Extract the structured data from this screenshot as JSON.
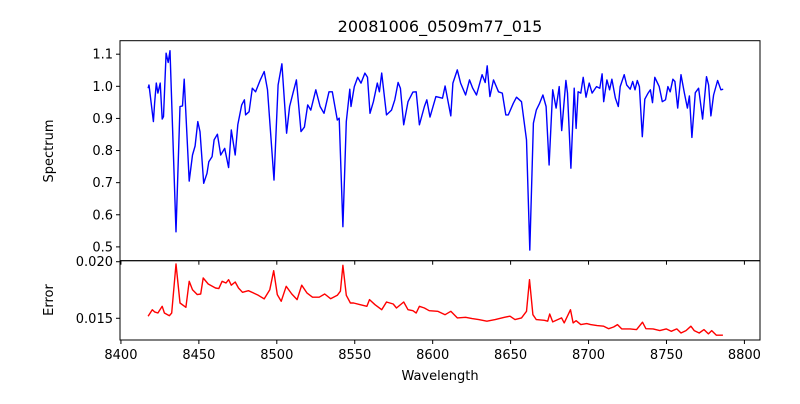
{
  "chart_data": [
    {
      "type": "line",
      "title": "20081006_0509m77_015",
      "xlabel": "",
      "ylabel": "Spectrum",
      "xlim": [
        8399.4,
        8810
      ],
      "ylim": [
        0.457,
        1.142
      ],
      "xticks": [
        8400,
        8450,
        8500,
        8550,
        8600,
        8650,
        8700,
        8750,
        8800
      ],
      "yticks": [
        0.5,
        0.6,
        0.7,
        0.8,
        0.9,
        1.0,
        1.1
      ],
      "ytick_labels": [
        "0.5",
        "0.6",
        "0.7",
        "0.8",
        "0.9",
        "1.0",
        "1.1"
      ],
      "grid": false,
      "series": [
        {
          "name": "Spectrum",
          "color": "#0000ff",
          "x": [
            8417.4,
            8418.0,
            8420.8,
            8421.6,
            8422.7,
            8423.7,
            8425.2,
            8426.5,
            8427.3,
            8429.0,
            8430.3,
            8431.5,
            8435.3,
            8437.9,
            8439.5,
            8440.6,
            8443.8,
            8445.9,
            8447.6,
            8449.3,
            8450.7,
            8453.1,
            8455.2,
            8456.4,
            8458.5,
            8459.8,
            8461.9,
            8464.0,
            8466.6,
            8469.1,
            8470.8,
            8473.3,
            8475.0,
            8477.5,
            8479.2,
            8480.0,
            8482.2,
            8484.3,
            8486.4,
            8489.4,
            8491.9,
            8494.0,
            8498.2,
            8500.8,
            8503.3,
            8506.3,
            8508.2,
            8510.4,
            8512.6,
            8515.5,
            8517.7,
            8519.8,
            8521.8,
            8525.0,
            8527.8,
            8530.3,
            8533.5,
            8535.6,
            8538.8,
            8540.0,
            8542.4,
            8544.6,
            8546.8,
            8547.6,
            8549.7,
            8551.9,
            8554.0,
            8556.5,
            8558.2,
            8559.8,
            8562.0,
            8564.5,
            8565.8,
            8567.3,
            8570.4,
            8573.6,
            8575.7,
            8577.8,
            8579.3,
            8581.4,
            8584.2,
            8587.3,
            8589.4,
            8591.5,
            8594.7,
            8596.2,
            8598.3,
            8602.1,
            8606.3,
            8608.0,
            8611.6,
            8613.0,
            8615.8,
            8617.9,
            8621.1,
            8623.6,
            8625.7,
            8628.1,
            8631.7,
            8633.7,
            8635.0,
            8636.7,
            8639.0,
            8642.2,
            8644.7,
            8646.9,
            8648.5,
            8651.7,
            8653.8,
            8657.0,
            8660.2,
            8662.3,
            8664.6,
            8666.5,
            8668.6,
            8670.7,
            8672.8,
            8674.7,
            8677.0,
            8679.2,
            8681.2,
            8682.8,
            8685.5,
            8686.5,
            8688.7,
            8690.8,
            8692.0,
            8693.3,
            8695.0,
            8696.6,
            8698.4,
            8700.4,
            8702.3,
            8705.1,
            8707.2,
            8708.7,
            8709.7,
            8711.8,
            8713.5,
            8715.0,
            8717.2,
            8719.1,
            8720.3,
            8722.9,
            8724.5,
            8726.7,
            8728.3,
            8729.8,
            8731.3,
            8732.6,
            8734.5,
            8736.1,
            8738.2,
            8739.7,
            8741.0,
            8742.5,
            8745.3,
            8747.3,
            8749.4,
            8750.9,
            8752.4,
            8754.1,
            8755.4,
            8757.2,
            8759.3,
            8761.5,
            8763.4,
            8764.7,
            8766.3,
            8768.5,
            8770.6,
            8773.2,
            8775.7,
            8777.0,
            8778.5,
            8780.2,
            8782.8,
            8784.9,
            8786.4
          ],
          "y": [
            0.994,
            1.004,
            0.89,
            0.947,
            1.01,
            0.979,
            1.01,
            0.898,
            0.906,
            1.103,
            1.074,
            1.111,
            0.547,
            0.937,
            0.939,
            1.022,
            0.705,
            0.786,
            0.814,
            0.89,
            0.859,
            0.698,
            0.729,
            0.765,
            0.781,
            0.833,
            0.851,
            0.786,
            0.807,
            0.747,
            0.864,
            0.786,
            0.88,
            0.942,
            0.958,
            0.911,
            0.921,
            0.994,
            0.983,
            1.02,
            1.046,
            0.989,
            0.708,
            1.004,
            1.07,
            0.854,
            0.937,
            0.979,
            1.02,
            0.859,
            0.873,
            0.942,
            0.926,
            0.989,
            0.937,
            0.916,
            0.983,
            0.983,
            0.895,
            0.901,
            0.563,
            0.89,
            0.991,
            0.937,
            0.999,
            1.028,
            1.01,
            1.041,
            1.028,
            0.916,
            0.952,
            1.01,
            0.983,
            1.041,
            0.911,
            0.926,
            0.958,
            1.012,
            0.994,
            0.88,
            0.952,
            0.982,
            0.983,
            0.88,
            0.937,
            0.958,
            0.904,
            0.968,
            0.963,
            1.001,
            0.908,
            1.01,
            1.051,
            1.01,
            0.973,
            1.02,
            0.994,
            0.973,
            1.036,
            1.012,
            1.064,
            0.968,
            1.02,
            0.983,
            0.979,
            0.911,
            0.911,
            0.947,
            0.966,
            0.952,
            0.833,
            0.49,
            0.885,
            0.926,
            0.947,
            0.973,
            0.937,
            0.755,
            0.989,
            0.932,
            0.999,
            0.862,
            1.018,
            0.979,
            0.745,
            0.994,
            0.869,
            0.983,
            0.979,
            1.028,
            0.966,
            1.01,
            0.979,
            0.999,
            0.994,
            1.039,
            0.952,
            1.02,
            0.989,
            1.022,
            0.963,
            0.937,
            0.999,
            1.036,
            1.004,
            0.991,
            1.015,
            0.989,
            1.018,
            0.999,
            0.843,
            0.96,
            0.979,
            0.989,
            0.949,
            1.028,
            0.999,
            0.952,
            0.958,
            0.999,
            0.983,
            1.022,
            1.015,
            0.932,
            1.036,
            0.979,
            0.932,
            0.97,
            0.841,
            0.98,
            0.994,
            0.898,
            1.03,
            1.004,
            0.908,
            0.973,
            1.018,
            0.989,
            0.991
          ]
        }
      ]
    },
    {
      "type": "line",
      "title": "",
      "xlabel": "Wavelength",
      "ylabel": "Error",
      "xlim": [
        8399.4,
        8810
      ],
      "ylim": [
        0.01308,
        0.02009
      ],
      "xticks": [
        8400,
        8450,
        8500,
        8550,
        8600,
        8650,
        8700,
        8750,
        8800
      ],
      "xtick_labels": [
        "8400",
        "8450",
        "8500",
        "8550",
        "8600",
        "8650",
        "8700",
        "8750",
        "8800"
      ],
      "yticks": [
        0.015,
        0.02
      ],
      "ytick_labels": [
        "0.015",
        "0.020"
      ],
      "grid": false,
      "series": [
        {
          "name": "Error",
          "color": "#ff0000",
          "x": [
            8417.4,
            8420.1,
            8421.6,
            8423.7,
            8426.5,
            8427.9,
            8431.1,
            8432.6,
            8435.3,
            8437.9,
            8441.7,
            8443.8,
            8445.9,
            8449.0,
            8451.2,
            8452.8,
            8456.0,
            8460.7,
            8462.8,
            8464.9,
            8467.4,
            8469.1,
            8470.8,
            8473.3,
            8475.4,
            8478.0,
            8481.8,
            8484.9,
            8488.1,
            8491.9,
            8495.5,
            8498.0,
            8500.3,
            8502.8,
            8506.0,
            8509.6,
            8513.0,
            8516.0,
            8519.3,
            8522.9,
            8527.2,
            8530.7,
            8534.5,
            8538.8,
            8540.8,
            8542.4,
            8544.6,
            8547.2,
            8549.3,
            8553.5,
            8557.8,
            8559.5,
            8563.0,
            8567.3,
            8570.4,
            8574.7,
            8576.8,
            8581.4,
            8584.2,
            8587.3,
            8589.4,
            8591.5,
            8594.7,
            8597.8,
            8603.2,
            8608.0,
            8611.6,
            8615.8,
            8621.1,
            8625.3,
            8629.5,
            8634.8,
            8640.1,
            8646.0,
            8649.6,
            8652.8,
            8657.0,
            8660.2,
            8662.1,
            8664.3,
            8666.5,
            8671.7,
            8673.8,
            8675.1,
            8677.0,
            8680.2,
            8682.7,
            8684.4,
            8688.4,
            8690.1,
            8692.0,
            8695.0,
            8698.8,
            8701.3,
            8705.5,
            8709.7,
            8712.9,
            8716.1,
            8718.6,
            8721.3,
            8726.7,
            8730.8,
            8734.6,
            8736.8,
            8741.4,
            8745.7,
            8749.8,
            8753.0,
            8756.6,
            8759.3,
            8762.5,
            8765.7,
            8767.8,
            8771.0,
            8774.1,
            8776.9,
            8779.0,
            8782.0,
            8786.2
          ],
          "y": [
            0.01518,
            0.01576,
            0.01556,
            0.01547,
            0.01606,
            0.01547,
            0.01523,
            0.01547,
            0.0198,
            0.01635,
            0.01597,
            0.01827,
            0.01753,
            0.01709,
            0.01715,
            0.01856,
            0.01803,
            0.01768,
            0.01762,
            0.01827,
            0.01812,
            0.01841,
            0.01792,
            0.01821,
            0.01768,
            0.0173,
            0.01744,
            0.01724,
            0.01703,
            0.01671,
            0.01753,
            0.01921,
            0.01709,
            0.0165,
            0.01783,
            0.01715,
            0.01665,
            0.01792,
            0.01724,
            0.01686,
            0.01686,
            0.01715,
            0.01673,
            0.01703,
            0.01739,
            0.01968,
            0.01703,
            0.01635,
            0.01635,
            0.0162,
            0.01606,
            0.01665,
            0.0162,
            0.01576,
            0.01644,
            0.01626,
            0.01591,
            0.01644,
            0.01576,
            0.01567,
            0.01547,
            0.01606,
            0.01591,
            0.01567,
            0.01562,
            0.01532,
            0.01562,
            0.01503,
            0.01509,
            0.01497,
            0.01488,
            0.01474,
            0.01488,
            0.01509,
            0.01518,
            0.01488,
            0.01503,
            0.01562,
            0.01841,
            0.01532,
            0.01488,
            0.01482,
            0.01474,
            0.01538,
            0.01468,
            0.01488,
            0.01503,
            0.01459,
            0.01576,
            0.01459,
            0.01479,
            0.01444,
            0.01453,
            0.01444,
            0.01435,
            0.0143,
            0.01408,
            0.01423,
            0.01444,
            0.01406,
            0.01406,
            0.014,
            0.01465,
            0.01408,
            0.01406,
            0.01391,
            0.01406,
            0.01385,
            0.01406,
            0.0137,
            0.01391,
            0.0143,
            0.01391,
            0.0137,
            0.014,
            0.01362,
            0.01391,
            0.0135,
            0.0135
          ]
        }
      ]
    }
  ]
}
